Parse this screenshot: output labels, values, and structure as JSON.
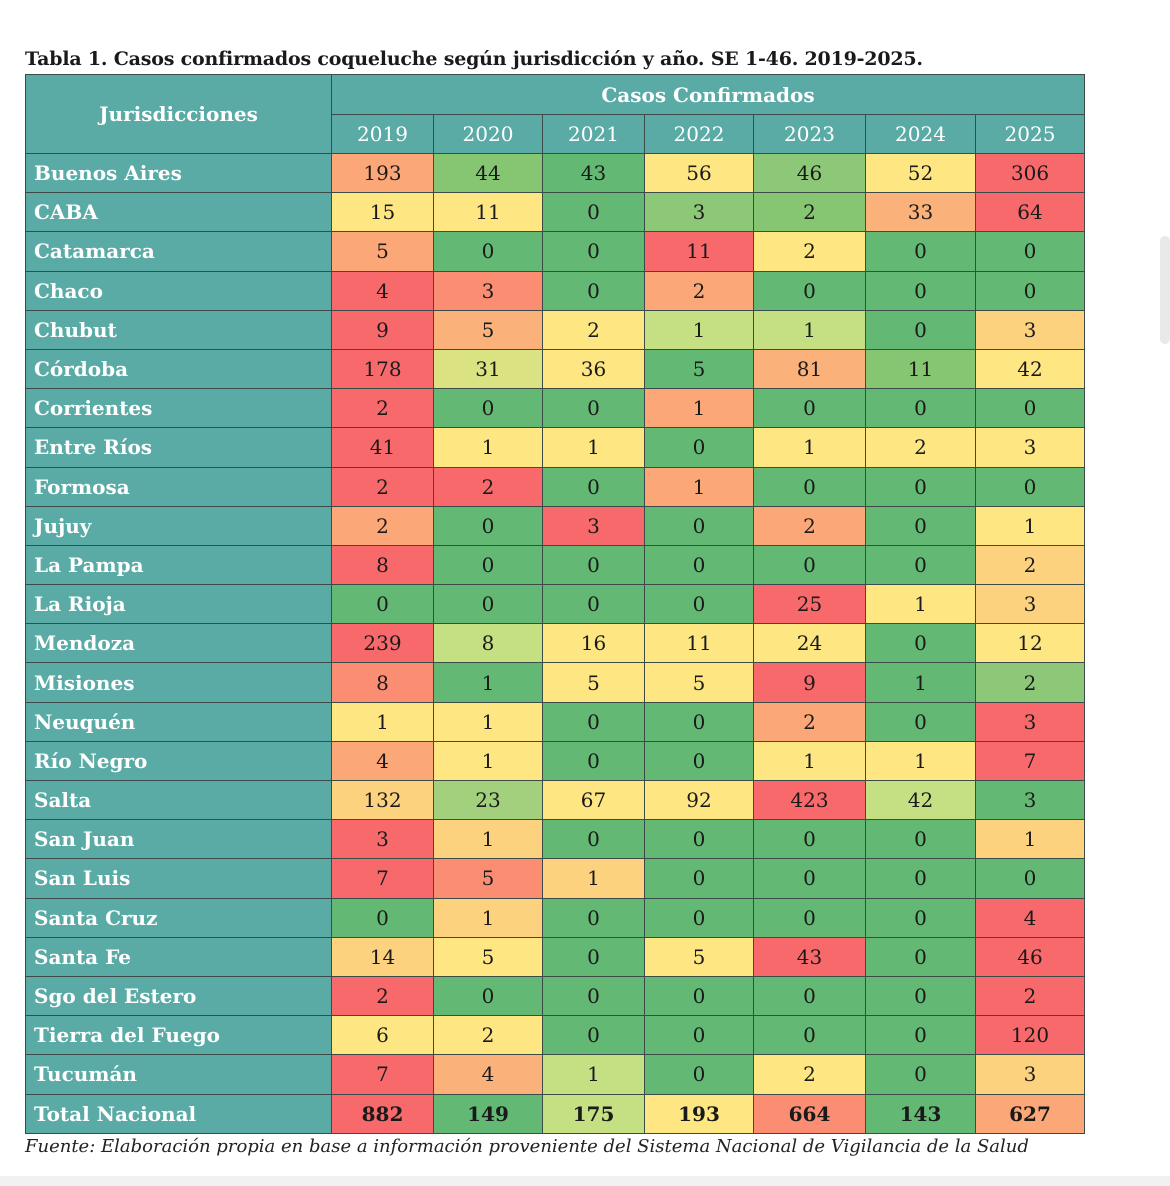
{
  "caption": "Tabla 1. Casos confirmados coqueluche según jurisdicción y año. SE 1-46. 2019-2025.",
  "header": {
    "jurisdiction_label": "Jurisdicciones",
    "group_label": "Casos Confirmados",
    "years": [
      "2019",
      "2020",
      "2021",
      "2022",
      "2023",
      "2024",
      "2025"
    ]
  },
  "colors": {
    "header_teal": "#5aaba6",
    "heat_scale": [
      "#f8696b",
      "#fa9a74",
      "#fcd57e",
      "#fee783",
      "#c5e083",
      "#8cc878",
      "#63b874"
    ]
  },
  "rows": [
    {
      "name": "Buenos Aires",
      "values": [
        "193",
        "44",
        "43",
        "56",
        "46",
        "52",
        "306"
      ],
      "colors": [
        "#fba777",
        "#86c673",
        "#63b874",
        "#fee783",
        "#8cc878",
        "#fee783",
        "#f8696b"
      ]
    },
    {
      "name": "CABA",
      "values": [
        "15",
        "11",
        "0",
        "3",
        "2",
        "33",
        "64"
      ],
      "colors": [
        "#fee783",
        "#fee783",
        "#63b874",
        "#8cc878",
        "#86c673",
        "#fbb27a",
        "#f8696b"
      ]
    },
    {
      "name": "Catamarca",
      "values": [
        "5",
        "0",
        "0",
        "11",
        "2",
        "0",
        "0"
      ],
      "colors": [
        "#fba777",
        "#63b874",
        "#63b874",
        "#f8696b",
        "#fee783",
        "#63b874",
        "#63b874"
      ]
    },
    {
      "name": "Chaco",
      "values": [
        "4",
        "3",
        "0",
        "2",
        "0",
        "0",
        "0"
      ],
      "colors": [
        "#f8696b",
        "#fa8d72",
        "#63b874",
        "#fba777",
        "#63b874",
        "#63b874",
        "#63b874"
      ]
    },
    {
      "name": "Chubut",
      "values": [
        "9",
        "5",
        "2",
        "1",
        "1",
        "0",
        "3"
      ],
      "colors": [
        "#f8696b",
        "#fbb27a",
        "#fee783",
        "#c5e083",
        "#c5e083",
        "#63b874",
        "#fdd27f"
      ]
    },
    {
      "name": "Córdoba",
      "values": [
        "178",
        "31",
        "36",
        "5",
        "81",
        "11",
        "42"
      ],
      "colors": [
        "#f8696b",
        "#dae282",
        "#fee783",
        "#63b874",
        "#fbb27a",
        "#86c673",
        "#fee783"
      ]
    },
    {
      "name": "Corrientes",
      "values": [
        "2",
        "0",
        "0",
        "1",
        "0",
        "0",
        "0"
      ],
      "colors": [
        "#f8696b",
        "#63b874",
        "#63b874",
        "#fba777",
        "#63b874",
        "#63b874",
        "#63b874"
      ]
    },
    {
      "name": "Entre Ríos",
      "values": [
        "41",
        "1",
        "1",
        "0",
        "1",
        "2",
        "3"
      ],
      "colors": [
        "#f8696b",
        "#fee783",
        "#fee783",
        "#63b874",
        "#fee783",
        "#fee783",
        "#fee783"
      ]
    },
    {
      "name": "Formosa",
      "values": [
        "2",
        "2",
        "0",
        "1",
        "0",
        "0",
        "0"
      ],
      "colors": [
        "#f8696b",
        "#f8696b",
        "#63b874",
        "#fba777",
        "#63b874",
        "#63b874",
        "#63b874"
      ]
    },
    {
      "name": "Jujuy",
      "values": [
        "2",
        "0",
        "3",
        "0",
        "2",
        "0",
        "1"
      ],
      "colors": [
        "#fba777",
        "#63b874",
        "#f8696b",
        "#63b874",
        "#fba777",
        "#63b874",
        "#fee783"
      ]
    },
    {
      "name": "La Pampa",
      "values": [
        "8",
        "0",
        "0",
        "0",
        "0",
        "0",
        "2"
      ],
      "colors": [
        "#f8696b",
        "#63b874",
        "#63b874",
        "#63b874",
        "#63b874",
        "#63b874",
        "#fdd27f"
      ]
    },
    {
      "name": "La Rioja",
      "values": [
        "0",
        "0",
        "0",
        "0",
        "25",
        "1",
        "3"
      ],
      "colors": [
        "#63b874",
        "#63b874",
        "#63b874",
        "#63b874",
        "#f8696b",
        "#fee783",
        "#fdd27f"
      ]
    },
    {
      "name": "Mendoza",
      "values": [
        "239",
        "8",
        "16",
        "11",
        "24",
        "0",
        "12"
      ],
      "colors": [
        "#f8696b",
        "#c5e083",
        "#fee783",
        "#fee783",
        "#fee783",
        "#63b874",
        "#fee783"
      ]
    },
    {
      "name": "Misiones",
      "values": [
        "8",
        "1",
        "5",
        "5",
        "9",
        "1",
        "2"
      ],
      "colors": [
        "#fa8d72",
        "#63b874",
        "#fee783",
        "#fee783",
        "#f8696b",
        "#63b874",
        "#8cc878"
      ]
    },
    {
      "name": "Neuquén",
      "values": [
        "1",
        "1",
        "0",
        "0",
        "2",
        "0",
        "3"
      ],
      "colors": [
        "#fee783",
        "#fee783",
        "#63b874",
        "#63b874",
        "#fba777",
        "#63b874",
        "#f8696b"
      ]
    },
    {
      "name": "Río Negro",
      "values": [
        "4",
        "1",
        "0",
        "0",
        "1",
        "1",
        "7"
      ],
      "colors": [
        "#fba777",
        "#fee783",
        "#63b874",
        "#63b874",
        "#fee783",
        "#fee783",
        "#f8696b"
      ]
    },
    {
      "name": "Salta",
      "values": [
        "132",
        "23",
        "67",
        "92",
        "423",
        "42",
        "3"
      ],
      "colors": [
        "#fdd27f",
        "#a3d07c",
        "#fee783",
        "#fee783",
        "#f8696b",
        "#c5e083",
        "#63b874"
      ]
    },
    {
      "name": "San Juan",
      "values": [
        "3",
        "1",
        "0",
        "0",
        "0",
        "0",
        "1"
      ],
      "colors": [
        "#f8696b",
        "#fdd27f",
        "#63b874",
        "#63b874",
        "#63b874",
        "#63b874",
        "#fdd27f"
      ]
    },
    {
      "name": "San Luis",
      "values": [
        "7",
        "5",
        "1",
        "0",
        "0",
        "0",
        "0"
      ],
      "colors": [
        "#f8696b",
        "#fa8d72",
        "#fdd27f",
        "#63b874",
        "#63b874",
        "#63b874",
        "#63b874"
      ]
    },
    {
      "name": "Santa Cruz",
      "values": [
        "0",
        "1",
        "0",
        "0",
        "0",
        "0",
        "4"
      ],
      "colors": [
        "#63b874",
        "#fdd27f",
        "#63b874",
        "#63b874",
        "#63b874",
        "#63b874",
        "#f8696b"
      ]
    },
    {
      "name": "Santa Fe",
      "values": [
        "14",
        "5",
        "0",
        "5",
        "43",
        "0",
        "46"
      ],
      "colors": [
        "#fdd27f",
        "#fee783",
        "#63b874",
        "#fee783",
        "#f8696b",
        "#63b874",
        "#f8696b"
      ]
    },
    {
      "name": "Sgo del Estero",
      "values": [
        "2",
        "0",
        "0",
        "0",
        "0",
        "0",
        "2"
      ],
      "colors": [
        "#f8696b",
        "#63b874",
        "#63b874",
        "#63b874",
        "#63b874",
        "#63b874",
        "#f8696b"
      ]
    },
    {
      "name": "Tierra del Fuego",
      "values": [
        "6",
        "2",
        "0",
        "0",
        "0",
        "0",
        "120"
      ],
      "colors": [
        "#fee783",
        "#fee783",
        "#63b874",
        "#63b874",
        "#63b874",
        "#63b874",
        "#f8696b"
      ]
    },
    {
      "name": "Tucumán",
      "values": [
        "7",
        "4",
        "1",
        "0",
        "2",
        "0",
        "3"
      ],
      "colors": [
        "#f8696b",
        "#fbb27a",
        "#c5e083",
        "#63b874",
        "#fee783",
        "#63b874",
        "#fdd27f"
      ]
    }
  ],
  "total": {
    "name": "Total Nacional",
    "values": [
      "882",
      "149",
      "175",
      "193",
      "664",
      "143",
      "627"
    ],
    "colors": [
      "#f8696b",
      "#63b874",
      "#c5e083",
      "#fee783",
      "#fa8d72",
      "#63b874",
      "#fba777"
    ]
  },
  "source": "Fuente: Elaboración propia en base a información proveniente del Sistema Nacional de Vigilancia de la Salud"
}
